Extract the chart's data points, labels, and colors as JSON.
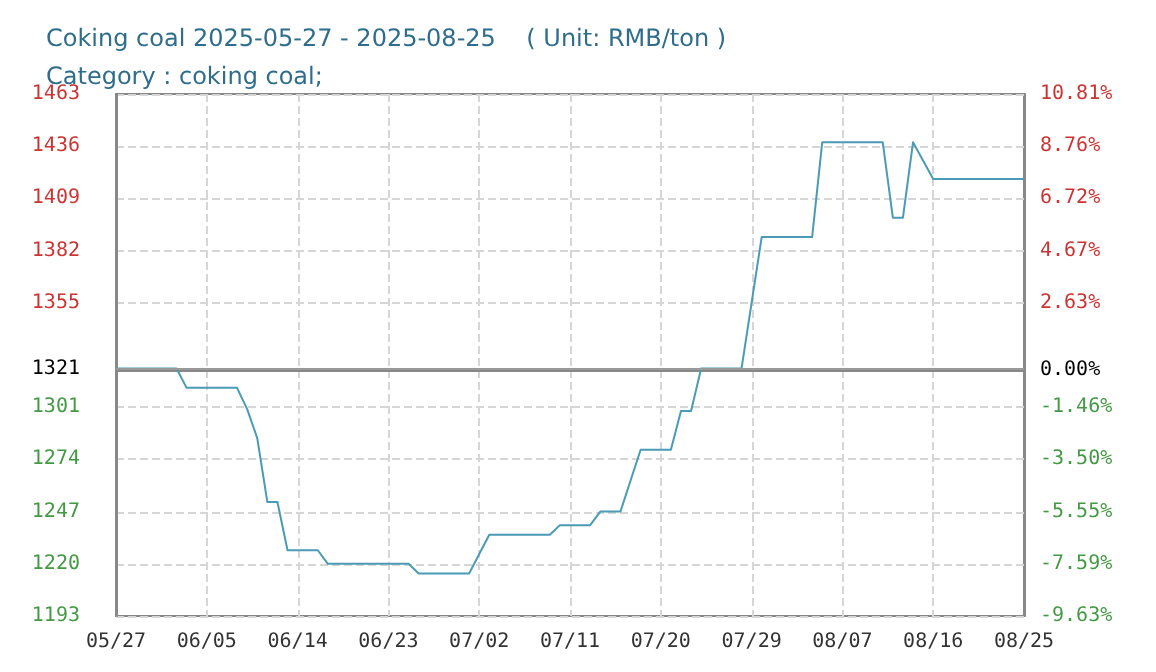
{
  "chart_data": {
    "type": "step",
    "title": "Coking coal 2025-05-27 - 2025-08-25    ( Unit: RMB/ton )",
    "subtitle": "Category : coking coal;",
    "x": [
      "--05-27",
      "--06-02",
      "--06-03",
      "--06-08",
      "--06-09",
      "--06-10",
      "--06-11",
      "--06-12",
      "--06-13",
      "--06-16",
      "--06-17",
      "--06-25",
      "--06-26",
      "--07-01",
      "--07-03",
      "--07-09",
      "--07-10",
      "--07-13",
      "--07-14",
      "--07-16",
      "--07-18",
      "--07-21",
      "--07-22",
      "--07-23",
      "--07-24",
      "--07-28",
      "--07-30",
      "--08-04",
      "--08-05",
      "--08-11",
      "--08-12",
      "--08-13",
      "--08-14",
      "--08-16",
      "--08-25"
    ],
    "series": [
      {
        "color": "#4a9bb5",
        "values": [
          1321,
          1321,
          1311,
          1311,
          1300,
          1285,
          1252,
          1252,
          1227,
          1227,
          1220,
          1220,
          1215,
          1215,
          1235,
          1235,
          1240,
          1240,
          1247,
          1247,
          1279,
          1279,
          1299,
          1299,
          1321,
          1321,
          1389,
          1389,
          1438,
          1438,
          1399,
          1399,
          1438,
          1419,
          1419
        ]
      }
    ],
    "xlim": [
      "--05-27",
      "--08-25"
    ],
    "xticks": [
      {
        "value": "--05-27",
        "label": "05/27"
      },
      {
        "value": "--06-05",
        "label": "06/05"
      },
      {
        "value": "--06-14",
        "label": "06/14"
      },
      {
        "value": "--06-23",
        "label": "06/23"
      },
      {
        "value": "--07-02",
        "label": "07/02"
      },
      {
        "value": "--07-11",
        "label": "07/11"
      },
      {
        "value": "--07-20",
        "label": "07/20"
      },
      {
        "value": "--07-29",
        "label": "07/29"
      },
      {
        "value": "--08-07",
        "label": "08/07"
      },
      {
        "value": "--08-16",
        "label": "08/16"
      },
      {
        "value": "--08-25",
        "label": "08/25"
      }
    ],
    "ylim": [
      1193,
      1463
    ],
    "yticks": [
      1193,
      1220,
      1247,
      1274,
      1301,
      1321,
      1355,
      1382,
      1409,
      1436,
      1463
    ],
    "y2lim": [
      -9.63,
      10.81
    ],
    "y2ticks": [
      {
        "value": -9.63,
        "label": "-9.63%"
      },
      {
        "value": -7.59,
        "label": "-7.59%"
      },
      {
        "value": -5.55,
        "label": "-5.55%"
      },
      {
        "value": -3.5,
        "label": "-3.50%"
      },
      {
        "value": -1.46,
        "label": "-1.46%"
      },
      {
        "value": 0,
        "label": "0.00%"
      },
      {
        "value": 2.63,
        "label": "2.63%"
      },
      {
        "value": 4.67,
        "label": "4.67%"
      },
      {
        "value": 6.72,
        "label": "6.72%"
      },
      {
        "value": 8.76,
        "label": "8.76%"
      },
      {
        "value": 10.81,
        "label": "10.81%"
      }
    ],
    "ref_lines": [
      {
        "axis": "y",
        "value": 1321,
        "color": "#999999"
      }
    ],
    "grid": true,
    "marker": "none",
    "line_style": "solid"
  }
}
